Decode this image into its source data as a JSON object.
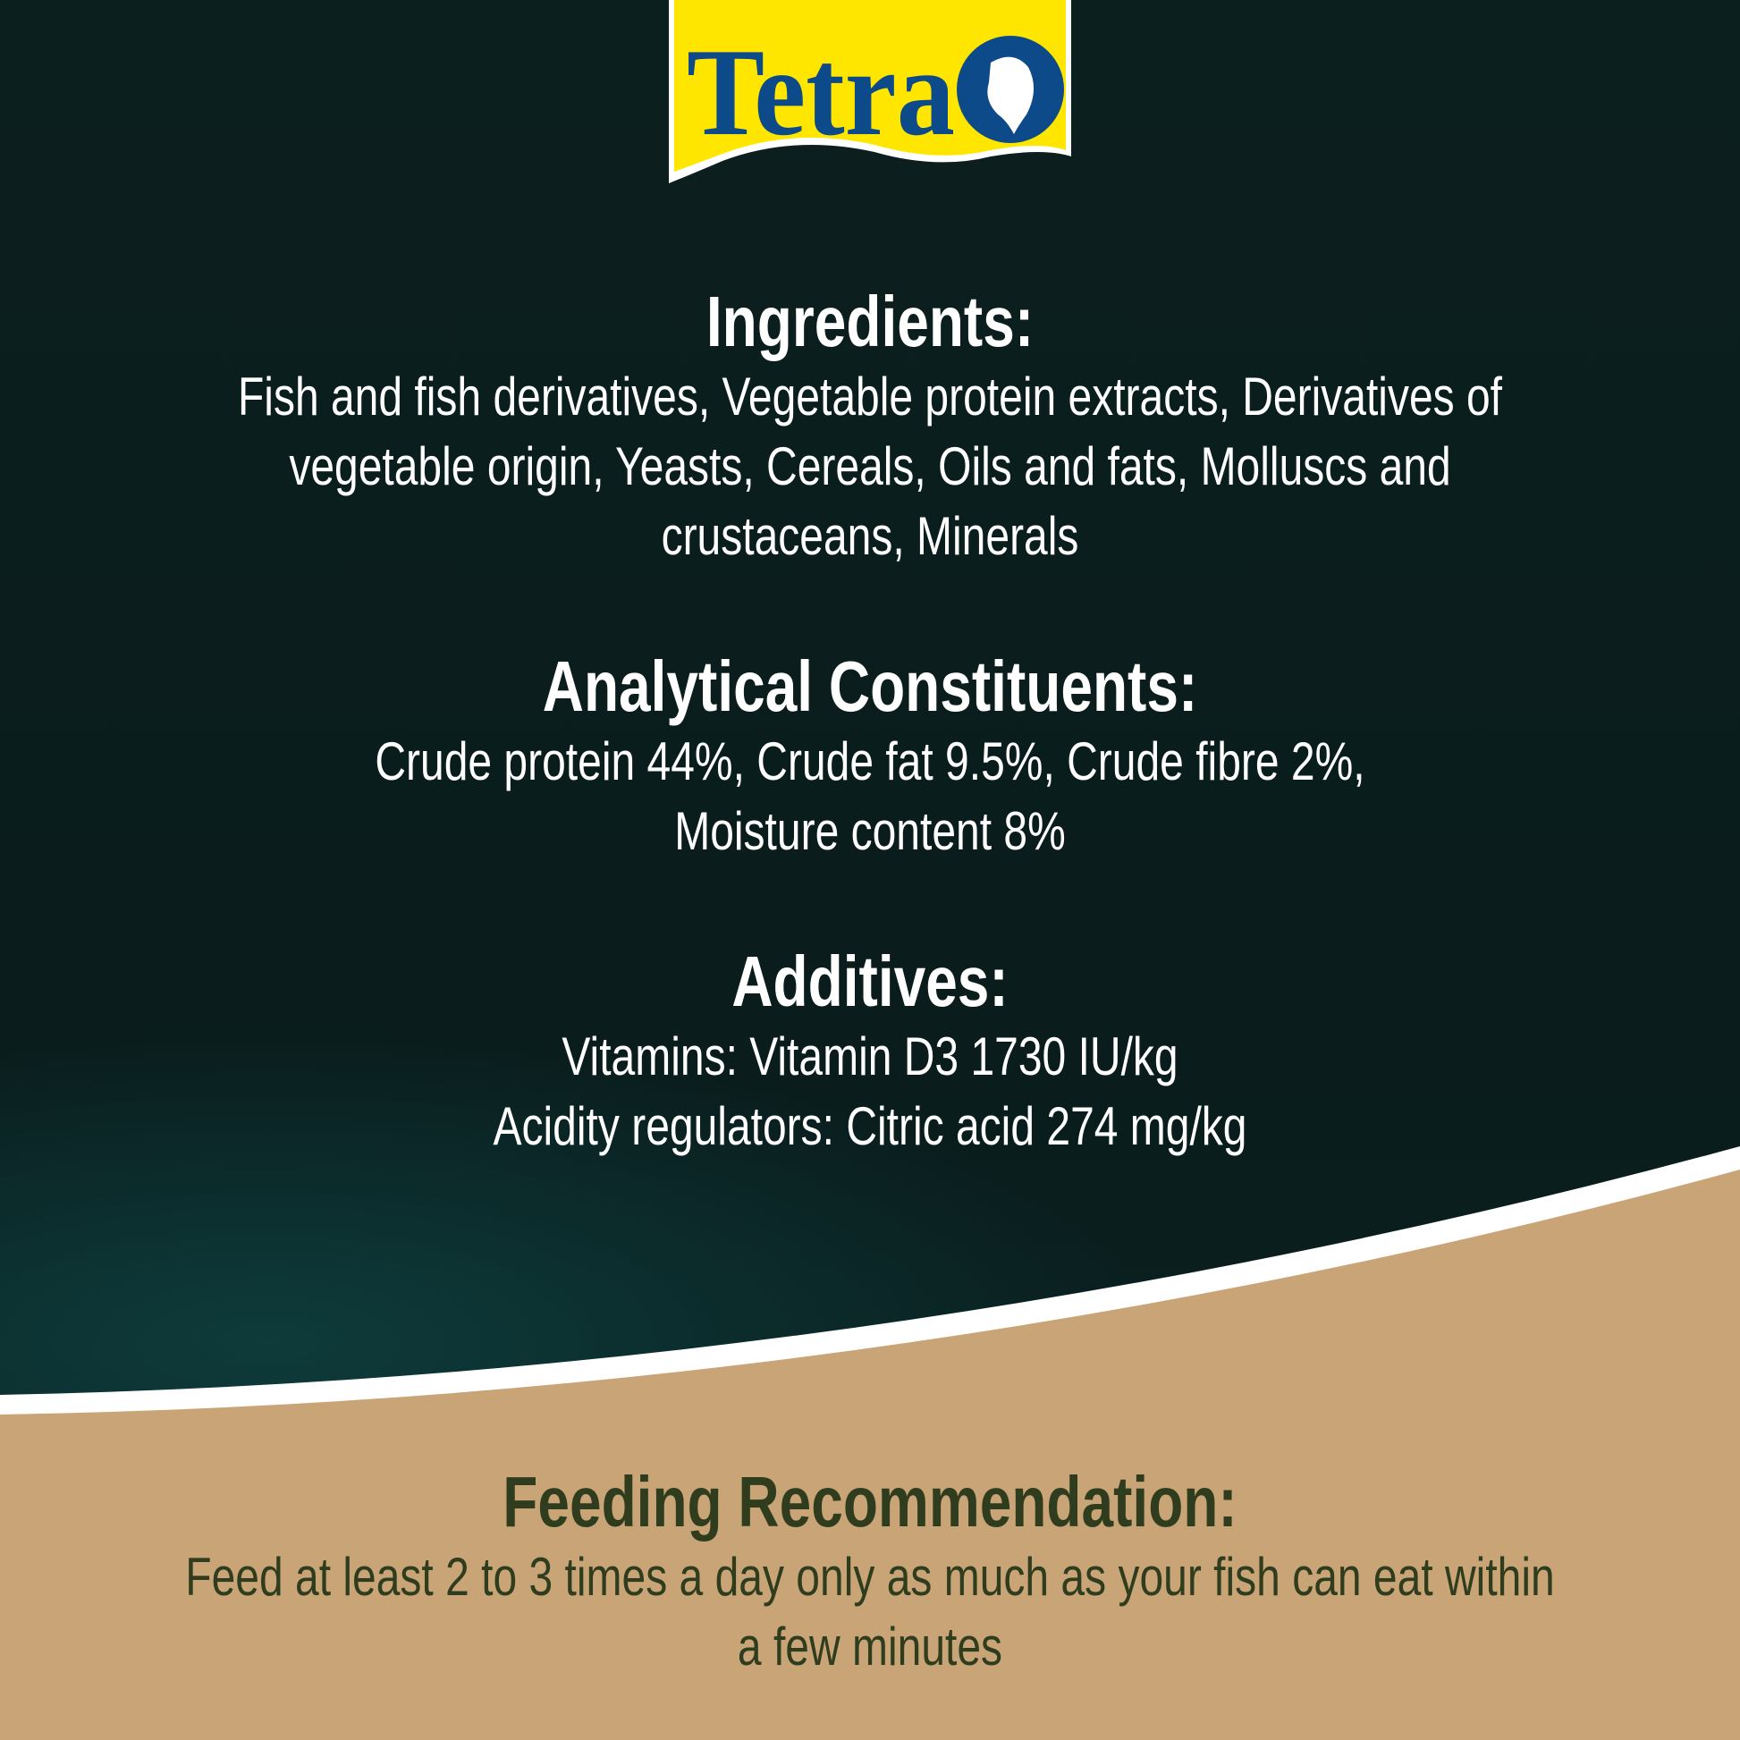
{
  "logo": {
    "brand": "Tetra",
    "colors": {
      "yellow": "#ffe600",
      "blue": "#0d4a8a"
    }
  },
  "ingredients": {
    "heading": "Ingredients:",
    "lines": [
      "Fish and fish derivatives, Vegetable protein extracts, Derivatives of",
      "vegetable origin, Yeasts, Cereals, Oils and fats, Molluscs and",
      "crustaceans, Minerals"
    ]
  },
  "analytical": {
    "heading": "Analytical Constituents:",
    "lines": [
      "Crude protein 44%, Crude fat 9.5%, Crude fibre 2%,",
      "Moisture content 8%"
    ]
  },
  "additives": {
    "heading": "Additives:",
    "lines": [
      "Vitamins: Vitamin D3 1730 IU/kg",
      "Acidity regulators: Citric acid 274 mg/kg"
    ]
  },
  "feeding": {
    "heading": "Feeding Recommendation:",
    "lines": [
      "Feed at least 2 to 3 times a day only as much as your fish can eat within",
      "a few minutes"
    ]
  },
  "colors": {
    "background_dark": "#0b1e1e",
    "background_tan": "#c9a57a",
    "feeding_text": "#2f3d1e"
  }
}
